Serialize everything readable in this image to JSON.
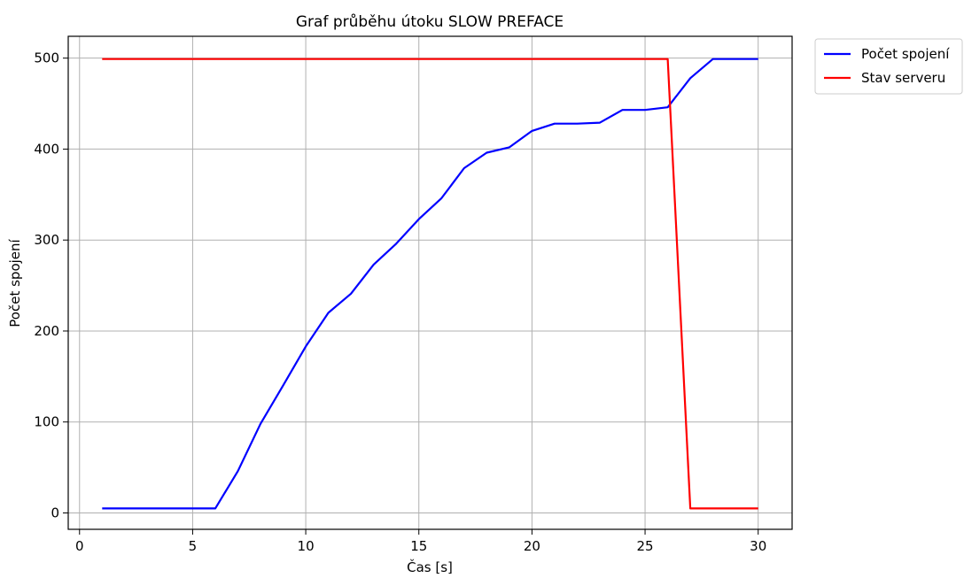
{
  "chart_data": {
    "type": "line",
    "title": "Graf průběhu útoku SLOW PREFACE",
    "xlabel": "Čas [s]",
    "ylabel": "Počet spojení",
    "xlim": [
      -0.5,
      31.5
    ],
    "ylim": [
      -18,
      524
    ],
    "xticks": [
      0,
      5,
      10,
      15,
      20,
      25,
      30
    ],
    "yticks": [
      0,
      100,
      200,
      300,
      400,
      500
    ],
    "grid": true,
    "legend_position": "outside-top-right",
    "x": [
      1,
      2,
      3,
      4,
      5,
      6,
      7,
      8,
      9,
      10,
      11,
      12,
      13,
      14,
      15,
      16,
      17,
      18,
      19,
      20,
      21,
      22,
      23,
      24,
      25,
      26,
      27,
      28,
      29,
      30
    ],
    "series": [
      {
        "name": "Počet spojení",
        "color": "#0000ff",
        "values": [
          5,
          5,
          5,
          5,
          5,
          5,
          46,
          98,
          140,
          183,
          220,
          241,
          273,
          296,
          323,
          346,
          379,
          396,
          402,
          420,
          428,
          428,
          429,
          443,
          443,
          446,
          478,
          499,
          499,
          499
        ]
      },
      {
        "name": "Stav serveru",
        "color": "#ff0000",
        "values": [
          499,
          499,
          499,
          499,
          499,
          499,
          499,
          499,
          499,
          499,
          499,
          499,
          499,
          499,
          499,
          499,
          499,
          499,
          499,
          499,
          499,
          499,
          499,
          499,
          499,
          499,
          5,
          5,
          5,
          5
        ]
      }
    ]
  }
}
